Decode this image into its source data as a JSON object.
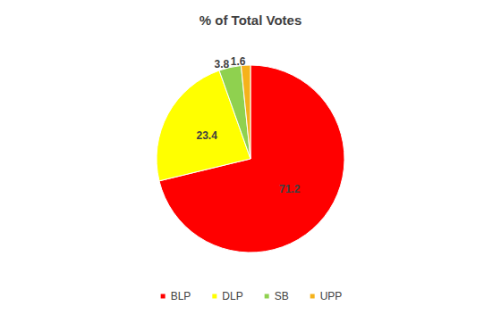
{
  "chart_data": {
    "type": "pie",
    "title": "% of Total Votes",
    "categories": [
      "BLP",
      "DLP",
      "SB",
      "UPP"
    ],
    "values": [
      71.2,
      23.4,
      3.8,
      1.6
    ],
    "colors": [
      "#ff0000",
      "#ffff00",
      "#8fd14f",
      "#f5b21b"
    ],
    "legend": "bottom",
    "data_labels": true
  }
}
